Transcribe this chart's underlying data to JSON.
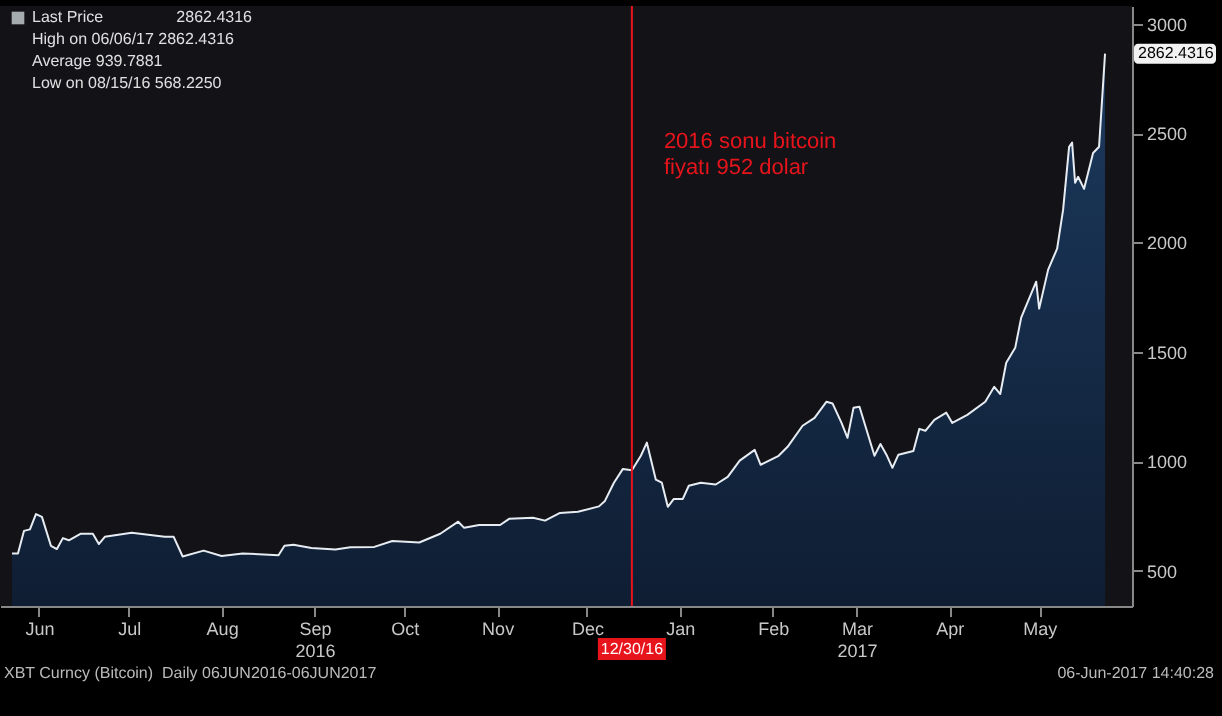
{
  "chart_data": {
    "type": "area",
    "x": [
      "2016-06-06",
      "2016-06-08",
      "2016-06-10",
      "2016-06-12",
      "2016-06-14",
      "2016-06-16",
      "2016-06-19",
      "2016-06-21",
      "2016-06-23",
      "2016-06-25",
      "2016-06-29",
      "2016-07-03",
      "2016-07-05",
      "2016-07-07",
      "2016-07-16",
      "2016-07-27",
      "2016-07-30",
      "2016-08-02",
      "2016-08-09",
      "2016-08-15",
      "2016-08-22",
      "2016-09-03",
      "2016-09-05",
      "2016-09-08",
      "2016-09-14",
      "2016-09-22",
      "2016-09-27",
      "2016-10-05",
      "2016-10-11",
      "2016-10-20",
      "2016-10-27",
      "2016-11-02",
      "2016-11-04",
      "2016-11-09",
      "2016-11-16",
      "2016-11-19",
      "2016-11-27",
      "2016-12-01",
      "2016-12-06",
      "2016-12-12",
      "2016-12-19",
      "2016-12-21",
      "2016-12-24",
      "2016-12-27",
      "2016-12-30",
      "2017-01-02",
      "2017-01-04",
      "2017-01-07",
      "2017-01-09",
      "2017-01-11",
      "2017-01-13",
      "2017-01-16",
      "2017-01-18",
      "2017-01-22",
      "2017-01-27",
      "2017-01-31",
      "2017-02-04",
      "2017-02-09",
      "2017-02-11",
      "2017-02-17",
      "2017-02-20",
      "2017-02-25",
      "2017-03-01",
      "2017-03-05",
      "2017-03-07",
      "2017-03-10",
      "2017-03-12",
      "2017-03-14",
      "2017-03-16",
      "2017-03-21",
      "2017-03-23",
      "2017-03-25",
      "2017-03-27",
      "2017-03-29",
      "2017-04-03",
      "2017-04-05",
      "2017-04-07",
      "2017-04-10",
      "2017-04-14",
      "2017-04-16",
      "2017-04-21",
      "2017-04-27",
      "2017-04-30",
      "2017-05-02",
      "2017-05-04",
      "2017-05-07",
      "2017-05-09",
      "2017-05-14",
      "2017-05-15",
      "2017-05-18",
      "2017-05-21",
      "2017-05-23",
      "2017-05-25",
      "2017-05-26",
      "2017-05-27",
      "2017-05-28",
      "2017-05-30",
      "2017-06-02",
      "2017-06-04",
      "2017-06-06"
    ],
    "series": [
      {
        "name": "Last Price",
        "color": "#e6ecf2",
        "values": [
          580,
          580,
          683,
          690,
          760,
          747,
          615,
          600,
          650,
          640,
          670,
          670,
          623,
          656,
          675,
          656,
          656,
          566,
          593,
          568.225,
          580,
          572,
          615,
          620,
          605,
          598,
          608,
          610,
          637,
          630,
          670,
          725,
          697,
          710,
          710,
          738,
          743,
          730,
          765,
          770,
          795,
          820,
          903,
          966,
          960,
          1026,
          1086,
          917,
          903,
          793,
          829,
          829,
          889,
          903,
          895,
          930,
          1004,
          1053,
          985,
          1026,
          1067,
          1163,
          1199,
          1273,
          1265,
          1176,
          1108,
          1245,
          1250,
          1026,
          1080,
          1031,
          971,
          1031,
          1048,
          1149,
          1140,
          1190,
          1223,
          1176,
          1213,
          1273,
          1341,
          1308,
          1451,
          1519,
          1657,
          1821,
          1698,
          1876,
          1972,
          2150,
          2437,
          2456,
          2273,
          2300,
          2245,
          2409,
          2437,
          2862.4316
        ]
      }
    ],
    "xlim": [
      "2016-06-02",
      "2017-06-15"
    ],
    "xticks": [
      {
        "value": "2016-06-15",
        "label": "Jun"
      },
      {
        "value": "2016-07-15",
        "label": "Jul"
      },
      {
        "value": "2016-08-15",
        "label": "Aug"
      },
      {
        "value": "2016-09-15",
        "label": "Sep\n2016"
      },
      {
        "value": "2016-10-15",
        "label": "Oct"
      },
      {
        "value": "2016-11-15",
        "label": "Nov"
      },
      {
        "value": "2016-12-15",
        "label": "Dec"
      },
      {
        "value": "2017-01-15",
        "label": "Jan"
      },
      {
        "value": "2017-02-15",
        "label": "Feb"
      },
      {
        "value": "2017-03-15",
        "label": "Mar\n2017"
      },
      {
        "value": "2017-04-15",
        "label": "Apr"
      },
      {
        "value": "2017-05-15",
        "label": "May"
      }
    ],
    "ylim": [
      340,
      3080
    ],
    "yticks": [
      500,
      1000,
      1500,
      2000,
      2500,
      3000
    ],
    "grid": false,
    "legend": "top left",
    "ref_lines": [
      {
        "axis": "x",
        "value": "2016-12-30",
        "label": "12/30/16",
        "color": "#e8141c"
      }
    ],
    "annotations": [
      "2016 sonu bitcoin\nfiyatı 952 dolar",
      "2862.4316",
      "2862.4316",
      "High on 06/06/17 2862.4316",
      "Average 939.7881",
      "Low on 08/15/16 568.2250",
      "XBT Curncy (Bitcoin)  Daily 06JUN2016-06JUN2017",
      "06-Jun-2017 14:40:28"
    ]
  }
}
